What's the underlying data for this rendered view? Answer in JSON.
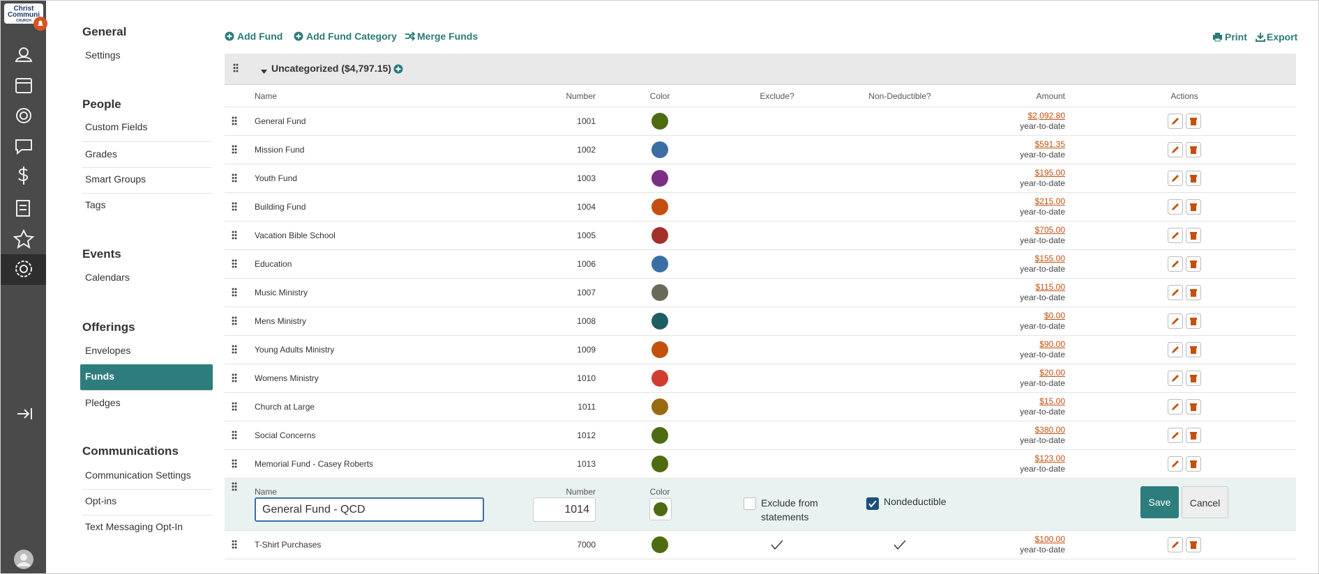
{
  "logo": [
    "Christ",
    "Communi",
    "CHURCH"
  ],
  "menu": [
    {
      "heading": "General",
      "items": [
        "Settings"
      ]
    },
    {
      "heading": "People",
      "items": [
        "Custom Fields",
        "Grades",
        "Smart Groups",
        "Tags"
      ]
    },
    {
      "heading": "Events",
      "items": [
        "Calendars"
      ]
    },
    {
      "heading": "Offerings",
      "items": [
        "Envelopes",
        "Funds",
        "Pledges"
      ]
    },
    {
      "heading": "Communications",
      "items": [
        "Communication Settings",
        "Opt-ins",
        "Text Messaging Opt-In"
      ]
    }
  ],
  "active_menu": {
    "section": 3,
    "item": 1
  },
  "toolbar": {
    "actions": [
      "Add Fund",
      "Add Fund Category",
      "Merge Funds"
    ],
    "print": "Print",
    "export": "Export"
  },
  "category": {
    "label": "Uncategorized ($4,797.15)"
  },
  "columns": [
    "Name",
    "Number",
    "Color",
    "Exclude?",
    "Non-Deductible?",
    "Amount",
    "Actions"
  ],
  "funds": [
    {
      "name": "General Fund",
      "number": "1001",
      "color": "#4f6b12",
      "exclude": false,
      "nondeductible": false,
      "amount": "$2,092.80",
      "period": "year-to-date"
    },
    {
      "name": "Mission Fund",
      "number": "1002",
      "color": "#3a6ea5",
      "exclude": false,
      "nondeductible": false,
      "amount": "$591.35",
      "period": "year-to-date"
    },
    {
      "name": "Youth Fund",
      "number": "1003",
      "color": "#7b2e83",
      "exclude": false,
      "nondeductible": false,
      "amount": "$195.00",
      "period": "year-to-date"
    },
    {
      "name": "Building Fund",
      "number": "1004",
      "color": "#c4500f",
      "exclude": false,
      "nondeductible": false,
      "amount": "$215.00",
      "period": "year-to-date"
    },
    {
      "name": "Vacation Bible School",
      "number": "1005",
      "color": "#a3302a",
      "exclude": false,
      "nondeductible": false,
      "amount": "$705.00",
      "period": "year-to-date"
    },
    {
      "name": "Education",
      "number": "1006",
      "color": "#3a6ea5",
      "exclude": false,
      "nondeductible": false,
      "amount": "$155.00",
      "period": "year-to-date"
    },
    {
      "name": "Music Ministry",
      "number": "1007",
      "color": "#6a6a5a",
      "exclude": false,
      "nondeductible": false,
      "amount": "$115.00",
      "period": "year-to-date"
    },
    {
      "name": "Mens Ministry",
      "number": "1008",
      "color": "#1d5e63",
      "exclude": false,
      "nondeductible": false,
      "amount": "$0.00",
      "period": "year-to-date"
    },
    {
      "name": "Young Adults Ministry",
      "number": "1009",
      "color": "#c4500f",
      "exclude": false,
      "nondeductible": false,
      "amount": "$90.00",
      "period": "year-to-date"
    },
    {
      "name": "Womens Ministry",
      "number": "1010",
      "color": "#d03c2f",
      "exclude": false,
      "nondeductible": false,
      "amount": "$20.00",
      "period": "year-to-date"
    },
    {
      "name": "Church at Large",
      "number": "1011",
      "color": "#9a6a12",
      "exclude": false,
      "nondeductible": false,
      "amount": "$15.00",
      "period": "year-to-date"
    },
    {
      "name": "Social Concerns",
      "number": "1012",
      "color": "#4f6b12",
      "exclude": false,
      "nondeductible": false,
      "amount": "$380.00",
      "period": "year-to-date"
    },
    {
      "name": "Memorial Fund - Casey Roberts",
      "number": "1013",
      "color": "#4f6b12",
      "exclude": false,
      "nondeductible": false,
      "amount": "$123.00",
      "period": "year-to-date"
    }
  ],
  "edit_row": {
    "name_label": "Name",
    "name_value": "General Fund - QCD",
    "number_label": "Number",
    "number_value": "1014",
    "color_label": "Color",
    "color": "#4f6b12",
    "exclude_label": "Exclude from statements",
    "exclude": false,
    "nondeductible_label": "Nondeductible",
    "nondeductible": true,
    "save": "Save",
    "cancel": "Cancel"
  },
  "more_funds": [
    {
      "name": "T-Shirt Purchases",
      "number": "7000",
      "color": "#4f6b12",
      "exclude": true,
      "nondeductible": true,
      "amount": "$100.00",
      "period": "year-to-date"
    }
  ]
}
